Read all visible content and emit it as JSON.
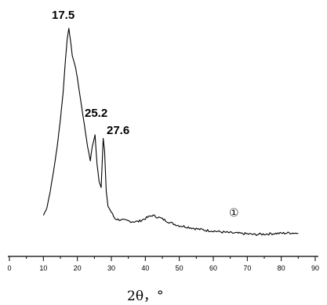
{
  "chart_data": {
    "type": "line",
    "xlabel": "2θ，°",
    "xlim": [
      0,
      90
    ],
    "x_ticks": [
      "0",
      "10",
      "20",
      "30",
      "40",
      "50",
      "60",
      "70",
      "80",
      "90"
    ],
    "y_axis_visible": false,
    "grid": false,
    "series": [
      {
        "name": "①",
        "color": "#000000",
        "points": [
          [
            10,
            0.085
          ],
          [
            11,
            0.12
          ],
          [
            12,
            0.2
          ],
          [
            13,
            0.3
          ],
          [
            14,
            0.41
          ],
          [
            15,
            0.55
          ],
          [
            15.8,
            0.68
          ],
          [
            16.5,
            0.84
          ],
          [
            17.0,
            0.94
          ],
          [
            17.5,
            0.99
          ],
          [
            18.0,
            0.93
          ],
          [
            18.5,
            0.86
          ],
          [
            19,
            0.83
          ],
          [
            19.5,
            0.8
          ],
          [
            20,
            0.75
          ],
          [
            21,
            0.64
          ],
          [
            22,
            0.53
          ],
          [
            23,
            0.42
          ],
          [
            23.8,
            0.35
          ],
          [
            24.4,
            0.42
          ],
          [
            25.2,
            0.475
          ],
          [
            25.8,
            0.33
          ],
          [
            26.4,
            0.25
          ],
          [
            27.0,
            0.22
          ],
          [
            27.6,
            0.46
          ],
          [
            28.0,
            0.4
          ],
          [
            28.5,
            0.2
          ],
          [
            29,
            0.13
          ],
          [
            30,
            0.1
          ],
          [
            31,
            0.07
          ],
          [
            32,
            0.065
          ],
          [
            34,
            0.06
          ],
          [
            36,
            0.055
          ],
          [
            38,
            0.055
          ],
          [
            40,
            0.07
          ],
          [
            42,
            0.085
          ],
          [
            44,
            0.075
          ],
          [
            46,
            0.06
          ],
          [
            48,
            0.045
          ],
          [
            50,
            0.035
          ],
          [
            52,
            0.03
          ],
          [
            55,
            0.02
          ],
          [
            58,
            0.012
          ],
          [
            60,
            0.01
          ],
          [
            62,
            0.005
          ],
          [
            65,
            0.0
          ],
          [
            68,
            -0.003
          ],
          [
            70,
            -0.005
          ],
          [
            72,
            -0.008
          ],
          [
            75,
            -0.006
          ],
          [
            78,
            -0.003
          ],
          [
            80,
            -0.002
          ],
          [
            83,
            0.0
          ],
          [
            85,
            -0.002
          ]
        ]
      }
    ],
    "annotations": [
      {
        "text": "17.5",
        "x": 17.5
      },
      {
        "text": "25.2",
        "x": 25.2
      },
      {
        "text": "27.6",
        "x": 27.6
      }
    ],
    "series_marker": {
      "text": "①",
      "x": 68,
      "y": 0.07
    }
  }
}
